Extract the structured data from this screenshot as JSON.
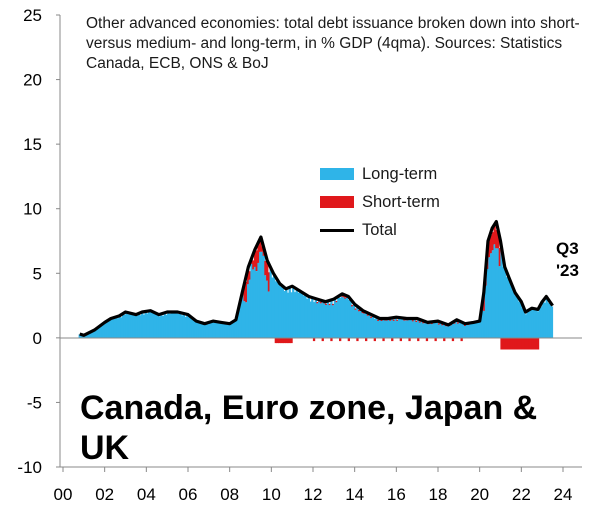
{
  "chart_data": {
    "type": "bar",
    "title": "Other advanced economies: total debt issuance broken down into short- versus medium- and long-term, in % GDP (4qma). Sources: Statistics Canada, ECB, ONS & BoJ",
    "subtitle": "Canada, Euro zone, Japan & UK",
    "ylim": [
      -10,
      25
    ],
    "yticks": [
      "25",
      "20",
      "15",
      "10",
      "5",
      "0",
      "-5",
      "-10"
    ],
    "xticks": [
      "00",
      "02",
      "04",
      "06",
      "08",
      "10",
      "12",
      "14",
      "16",
      "18",
      "20",
      "22",
      "24"
    ],
    "x_range": [
      2000,
      2024
    ],
    "grid": false,
    "legend_position": "center",
    "legend": [
      {
        "name": "Long-term",
        "color": "#2fb4e8"
      },
      {
        "name": "Short-term",
        "color": "#e0181b"
      },
      {
        "name": "Total",
        "color": "#000000"
      }
    ],
    "annotation": [
      "Q3",
      "'23"
    ],
    "series": [
      {
        "name": "Total",
        "x": [
          2000.8,
          2001.0,
          2001.5,
          2002.0,
          2002.3,
          2002.7,
          2003.0,
          2003.5,
          2003.8,
          2004.2,
          2004.6,
          2005.0,
          2005.5,
          2006.0,
          2006.4,
          2006.8,
          2007.2,
          2007.6,
          2008.0,
          2008.3,
          2008.6,
          2008.9,
          2009.2,
          2009.5,
          2009.8,
          2010.1,
          2010.4,
          2010.7,
          2011.0,
          2011.4,
          2011.8,
          2012.2,
          2012.6,
          2013.0,
          2013.4,
          2013.7,
          2014.0,
          2014.4,
          2014.8,
          2015.2,
          2015.6,
          2016.0,
          2016.5,
          2017.0,
          2017.5,
          2018.0,
          2018.5,
          2018.9,
          2019.3,
          2019.7,
          2020.0,
          2020.2,
          2020.4,
          2020.6,
          2020.8,
          2021.0,
          2021.2,
          2021.4,
          2021.7,
          2022.0,
          2022.2,
          2022.5,
          2022.8,
          2023.0,
          2023.2,
          2023.5
        ],
        "values": [
          0.3,
          0.2,
          0.6,
          1.2,
          1.5,
          1.7,
          2.0,
          1.8,
          2.0,
          2.1,
          1.8,
          2.0,
          2.0,
          1.8,
          1.3,
          1.1,
          1.3,
          1.2,
          1.1,
          1.4,
          3.5,
          5.5,
          6.8,
          7.8,
          6.0,
          5.0,
          4.2,
          3.8,
          4.0,
          3.6,
          3.2,
          3.0,
          2.8,
          3.0,
          3.4,
          3.2,
          2.6,
          2.1,
          1.8,
          1.5,
          1.5,
          1.6,
          1.5,
          1.5,
          1.2,
          1.3,
          1.0,
          1.4,
          1.1,
          1.2,
          1.3,
          3.5,
          7.5,
          8.5,
          9.0,
          7.5,
          5.5,
          4.7,
          3.5,
          2.8,
          2.0,
          2.3,
          2.2,
          2.8,
          3.2,
          2.5
        ]
      },
      {
        "name": "Long-term",
        "color": "#2fb4e8"
      },
      {
        "name": "Short-term",
        "color": "#e0181b"
      }
    ]
  }
}
